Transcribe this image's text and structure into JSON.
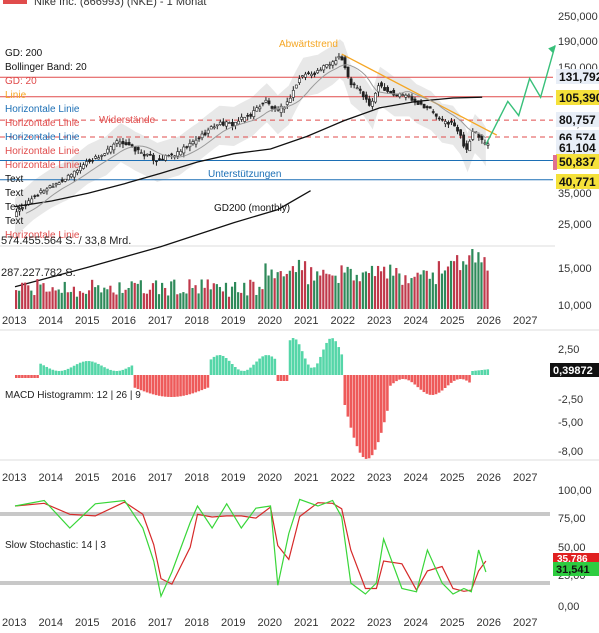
{
  "header": {
    "title": "Nike Inc. (866993) (NKE) - 1 Monat"
  },
  "legend": [
    "GD: 200",
    "Bollinger Band: 20",
    "GD: 20",
    "Linie",
    "Horizontale Linie",
    "Horizontale Linie",
    "Horizontale Linie",
    "Horizontale Linie",
    "Horizontale Linie",
    "Text",
    "Text",
    "Text",
    "Text",
    "Horizontale Linie"
  ],
  "colors": {
    "price_up": "#2e9e6a",
    "price_down": "#e04c4c",
    "volume_up": "#2e8a5a",
    "volume_down": "#c0394b",
    "macd_pos": "#55d6a8",
    "macd_neg": "#ee5a5a",
    "stoch_k": "#39d639",
    "stoch_d": "#d62a2a",
    "gd200": "#111111",
    "gd20": "#9a9a9a",
    "bollinger": "#d6d6d6",
    "resistance": "#e04c4c",
    "support": "#1c6fb5",
    "trend": "#f5a623",
    "projection": "#38c07a"
  },
  "labels": {
    "resistance": "Widerstände",
    "support": "Unterstützungen",
    "downtrend": "Abwärtstrend",
    "gd200": "GD200 (monthly)"
  },
  "volume_labels": {
    "v1": "574.455.564 S. / 33,8 Mrd.",
    "v2": "287.227.782 S."
  },
  "macd": {
    "label": "MACD Histogramm: 12 | 26 | 9",
    "value": "0,39872"
  },
  "stoch": {
    "label": "Slow Stochastic: 14 | 3",
    "value_d": "35,786",
    "value_k": "31,541"
  },
  "chart_data": [
    {
      "type": "line",
      "title": "Nike Inc. (866993) (NKE) - 1 Monat",
      "x": [
        "2013",
        "2014",
        "2015",
        "2016",
        "2017",
        "2018",
        "2019",
        "2020",
        "2021",
        "2022",
        "2023",
        "2024",
        "2025",
        "2026",
        "2027"
      ],
      "price_axis_ticks": [
        "250,000",
        "190,000",
        "150,000",
        "125,000",
        "100,000",
        "80,000",
        "65,000",
        "50,000",
        "35,000",
        "25,000",
        "15,000",
        "10,000"
      ],
      "price_axis_labels": [
        "131,792",
        "105,390",
        "80,757",
        "66,574",
        "61,104",
        "50,837",
        "40,771"
      ],
      "series": [
        {
          "name": "GD: 200",
          "points": [
            [
              2013.0,
              30
            ],
            [
              2014.0,
              32
            ],
            [
              2015.0,
              35
            ],
            [
              2016.0,
              39
            ],
            [
              2017.0,
              44
            ],
            [
              2018.0,
              50
            ],
            [
              2019.0,
              55
            ],
            [
              2020.0,
              58
            ],
            [
              2021.0,
              67
            ],
            [
              2022.0,
              80
            ],
            [
              2023.0,
              93
            ],
            [
              2024.0,
              100
            ],
            [
              2025.0,
              104
            ],
            [
              2025.8,
              105
            ]
          ]
        },
        {
          "name": "Kurs",
          "points": [
            [
              2013.0,
              27
            ],
            [
              2013.5,
              33
            ],
            [
              2014.0,
              38
            ],
            [
              2014.5,
              42
            ],
            [
              2015.0,
              50
            ],
            [
              2015.5,
              55
            ],
            [
              2015.9,
              64
            ],
            [
              2016.3,
              58
            ],
            [
              2016.9,
              51
            ],
            [
              2017.5,
              55
            ],
            [
              2018.0,
              64
            ],
            [
              2018.6,
              78
            ],
            [
              2019.0,
              77
            ],
            [
              2019.5,
              86
            ],
            [
              2019.9,
              101
            ],
            [
              2020.2,
              88
            ],
            [
              2020.5,
              98
            ],
            [
              2020.9,
              135
            ],
            [
              2021.3,
              140
            ],
            [
              2021.7,
              155
            ],
            [
              2021.95,
              170
            ],
            [
              2022.2,
              125
            ],
            [
              2022.5,
              112
            ],
            [
              2022.8,
              93
            ],
            [
              2023.0,
              122
            ],
            [
              2023.4,
              108
            ],
            [
              2023.8,
              108
            ],
            [
              2024.0,
              100
            ],
            [
              2024.4,
              92
            ],
            [
              2024.7,
              80
            ],
            [
              2025.0,
              78
            ],
            [
              2025.2,
              70
            ],
            [
              2025.4,
              57
            ],
            [
              2025.6,
              71
            ],
            [
              2025.8,
              65
            ],
            [
              2025.9,
              61
            ]
          ]
        }
      ],
      "projection": [
        [
          2025.9,
          61
        ],
        [
          2026.2,
          78
        ],
        [
          2026.5,
          100
        ],
        [
          2026.8,
          85
        ],
        [
          2027.1,
          130
        ],
        [
          2027.4,
          105
        ],
        [
          2027.8,
          190
        ]
      ],
      "horizontal_lines": [
        131.792,
        105.39,
        80.757,
        66.574,
        50.837,
        40.771
      ],
      "annotations": [
        "Widerstände",
        "Unterstützungen",
        "Abwärtstrend",
        "GD200 (monthly)"
      ]
    },
    {
      "type": "bar",
      "title": "Volumen",
      "labels": [
        "574.455.564 S. / 33,8 Mrd.",
        "287.227.782 S."
      ],
      "ylim": [
        0,
        574455564
      ]
    },
    {
      "type": "bar",
      "title": "MACD Histogramm: 12 | 26 | 9",
      "y_ticks": [
        "2,50",
        "-2,50",
        "-5,00",
        "-8,00"
      ],
      "last_value": 0.39872
    },
    {
      "type": "line",
      "title": "Slow Stochastic: 14 | 3",
      "y_ticks": [
        "100,00",
        "75,00",
        "50,00",
        "25,00",
        "0,00"
      ],
      "last_values": {
        "d": 35.786,
        "k": 31.541
      },
      "levels": [
        80,
        20
      ]
    }
  ]
}
